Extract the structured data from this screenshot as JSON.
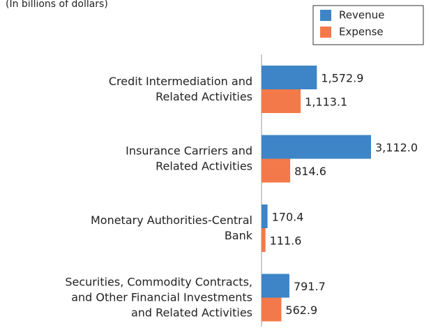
{
  "chart_data": {
    "type": "bar",
    "orientation": "horizontal",
    "subtitle": "(In billions of dollars)",
    "categories": [
      "Credit Intermediation and\nRelated Activities",
      "Insurance Carriers and\nRelated Activities",
      "Monetary Authorities-Central\nBank",
      "Securities, Commodity Contracts,\nand Other Financial Investments\nand Related Activities"
    ],
    "series": [
      {
        "name": "Revenue",
        "color": "#3d85c6",
        "values": [
          1572.9,
          3112.0,
          170.4,
          791.7
        ],
        "value_labels": [
          "1,572.9",
          "3,112.0",
          "170.4",
          "791.7"
        ]
      },
      {
        "name": "Expense",
        "color": "#f4794a",
        "values": [
          1113.1,
          814.6,
          111.6,
          562.9
        ],
        "value_labels": [
          "1,113.1",
          "814.6",
          "111.6",
          "562.9"
        ]
      }
    ],
    "legend": "top-right"
  }
}
